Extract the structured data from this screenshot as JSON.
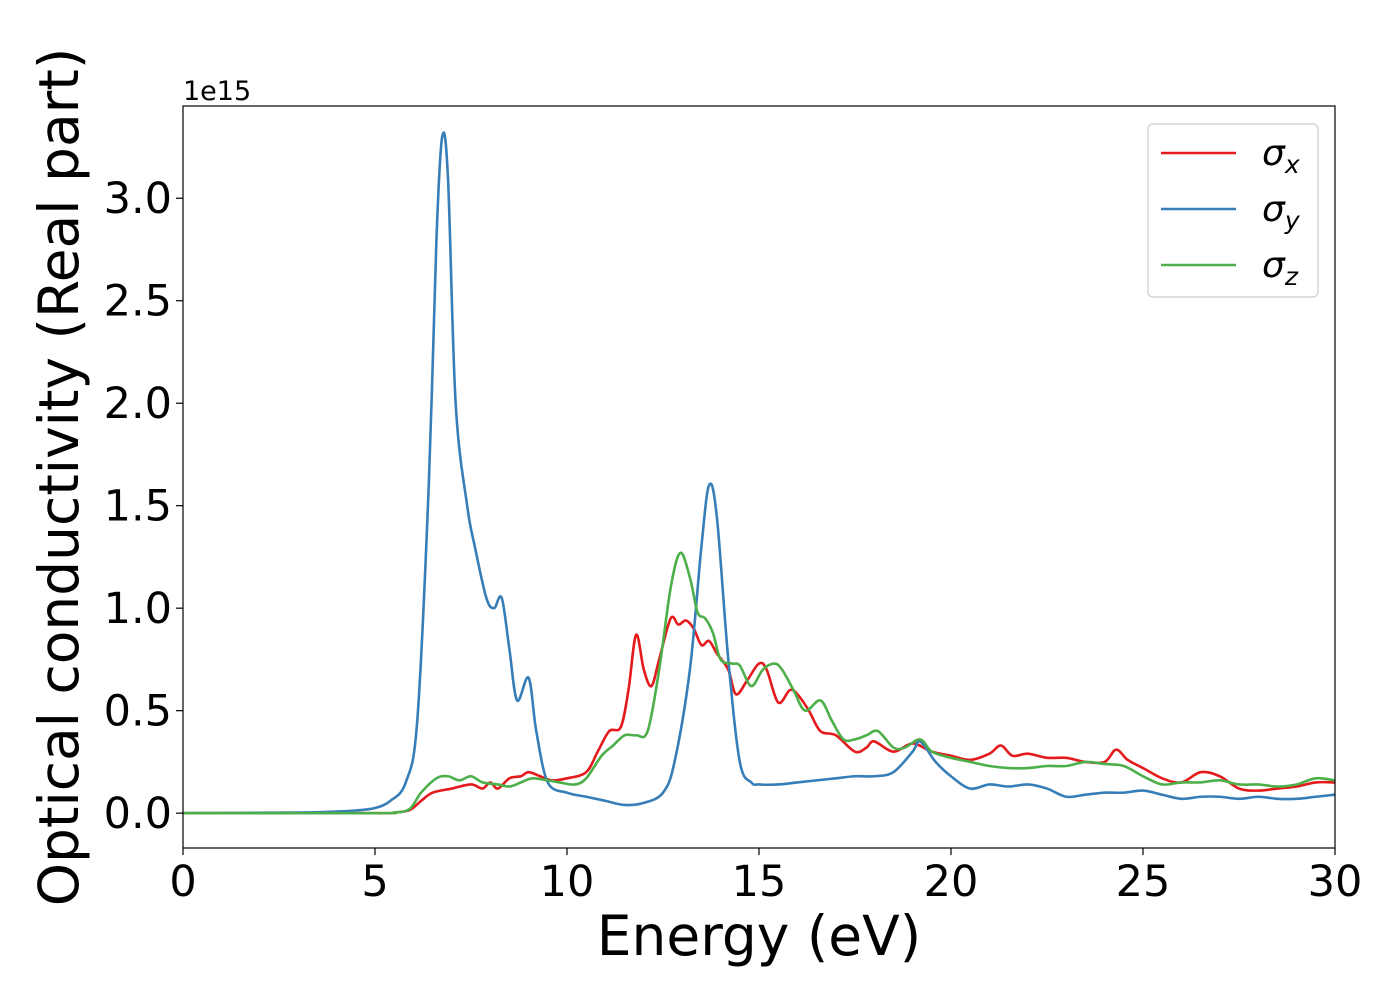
{
  "chart_data": {
    "type": "line",
    "xlabel": "Energy (eV)",
    "ylabel": "Optical conductivity (Real part)",
    "y_offset_text": "1e15",
    "xlim": [
      0,
      30
    ],
    "ylim": [
      -0.17,
      3.45
    ],
    "xticks": [
      0,
      5,
      10,
      15,
      20,
      25,
      30
    ],
    "xtick_labels": [
      "0",
      "5",
      "10",
      "15",
      "20",
      "25",
      "30"
    ],
    "yticks": [
      0.0,
      0.5,
      1.0,
      1.5,
      2.0,
      2.5,
      3.0
    ],
    "ytick_labels": [
      "0.0",
      "0.5",
      "1.0",
      "1.5",
      "2.0",
      "2.5",
      "3.0"
    ],
    "grid": false,
    "legend_position": "top-right",
    "series": [
      {
        "name": "σx",
        "legend_symbol": "σ",
        "legend_sub": "x",
        "color": "#e41a1c",
        "points": [
          [
            0,
            0
          ],
          [
            5,
            0
          ],
          [
            5.5,
            0.003
          ],
          [
            5.9,
            0.015
          ],
          [
            6.2,
            0.06
          ],
          [
            6.5,
            0.1
          ],
          [
            7,
            0.12
          ],
          [
            7.5,
            0.14
          ],
          [
            7.8,
            0.12
          ],
          [
            8,
            0.15
          ],
          [
            8.2,
            0.12
          ],
          [
            8.5,
            0.17
          ],
          [
            8.8,
            0.18
          ],
          [
            9,
            0.2
          ],
          [
            9.3,
            0.18
          ],
          [
            9.6,
            0.16
          ],
          [
            10,
            0.17
          ],
          [
            10.5,
            0.2
          ],
          [
            10.8,
            0.3
          ],
          [
            11.1,
            0.4
          ],
          [
            11.4,
            0.42
          ],
          [
            11.6,
            0.6
          ],
          [
            11.8,
            0.87
          ],
          [
            12,
            0.7
          ],
          [
            12.2,
            0.62
          ],
          [
            12.4,
            0.75
          ],
          [
            12.7,
            0.95
          ],
          [
            12.9,
            0.92
          ],
          [
            13.1,
            0.94
          ],
          [
            13.3,
            0.9
          ],
          [
            13.5,
            0.82
          ],
          [
            13.7,
            0.84
          ],
          [
            13.9,
            0.78
          ],
          [
            14.2,
            0.7
          ],
          [
            14.4,
            0.58
          ],
          [
            14.7,
            0.65
          ],
          [
            15,
            0.73
          ],
          [
            15.2,
            0.7
          ],
          [
            15.5,
            0.54
          ],
          [
            15.8,
            0.6
          ],
          [
            16,
            0.58
          ],
          [
            16.3,
            0.5
          ],
          [
            16.6,
            0.4
          ],
          [
            17,
            0.38
          ],
          [
            17.5,
            0.3
          ],
          [
            17.8,
            0.32
          ],
          [
            18,
            0.35
          ],
          [
            18.5,
            0.3
          ],
          [
            19,
            0.34
          ],
          [
            19.5,
            0.3
          ],
          [
            20,
            0.28
          ],
          [
            20.5,
            0.26
          ],
          [
            21,
            0.29
          ],
          [
            21.3,
            0.33
          ],
          [
            21.6,
            0.28
          ],
          [
            22,
            0.29
          ],
          [
            22.5,
            0.27
          ],
          [
            23,
            0.27
          ],
          [
            23.5,
            0.25
          ],
          [
            24,
            0.25
          ],
          [
            24.3,
            0.31
          ],
          [
            24.6,
            0.26
          ],
          [
            25,
            0.22
          ],
          [
            25.5,
            0.17
          ],
          [
            26,
            0.15
          ],
          [
            26.5,
            0.2
          ],
          [
            27,
            0.18
          ],
          [
            27.5,
            0.12
          ],
          [
            28,
            0.11
          ],
          [
            28.5,
            0.12
          ],
          [
            29,
            0.13
          ],
          [
            29.5,
            0.15
          ],
          [
            30,
            0.15
          ]
        ]
      },
      {
        "name": "σy",
        "legend_symbol": "σ",
        "legend_sub": "y",
        "color": "#377eb8",
        "points": [
          [
            0,
            0
          ],
          [
            3,
            0.003
          ],
          [
            4,
            0.008
          ],
          [
            4.5,
            0.013
          ],
          [
            5,
            0.025
          ],
          [
            5.4,
            0.06
          ],
          [
            5.8,
            0.15
          ],
          [
            6.1,
            0.45
          ],
          [
            6.4,
            1.6
          ],
          [
            6.6,
            2.8
          ],
          [
            6.75,
            3.3
          ],
          [
            6.9,
            3.1
          ],
          [
            7.1,
            2.0
          ],
          [
            7.4,
            1.5
          ],
          [
            7.6,
            1.3
          ],
          [
            7.9,
            1.05
          ],
          [
            8.1,
            1.0
          ],
          [
            8.3,
            1.05
          ],
          [
            8.5,
            0.8
          ],
          [
            8.7,
            0.55
          ],
          [
            9,
            0.66
          ],
          [
            9.2,
            0.4
          ],
          [
            9.5,
            0.15
          ],
          [
            10,
            0.1
          ],
          [
            10.5,
            0.08
          ],
          [
            11,
            0.06
          ],
          [
            11.5,
            0.04
          ],
          [
            12,
            0.05
          ],
          [
            12.5,
            0.1
          ],
          [
            12.8,
            0.25
          ],
          [
            13.2,
            0.7
          ],
          [
            13.5,
            1.3
          ],
          [
            13.7,
            1.6
          ],
          [
            13.9,
            1.45
          ],
          [
            14.2,
            0.75
          ],
          [
            14.5,
            0.25
          ],
          [
            14.8,
            0.15
          ],
          [
            15,
            0.14
          ],
          [
            15.5,
            0.14
          ],
          [
            16,
            0.15
          ],
          [
            16.5,
            0.16
          ],
          [
            17,
            0.17
          ],
          [
            17.5,
            0.18
          ],
          [
            18,
            0.18
          ],
          [
            18.5,
            0.2
          ],
          [
            19,
            0.3
          ],
          [
            19.2,
            0.35
          ],
          [
            19.6,
            0.25
          ],
          [
            20,
            0.18
          ],
          [
            20.5,
            0.12
          ],
          [
            21,
            0.14
          ],
          [
            21.5,
            0.13
          ],
          [
            22,
            0.14
          ],
          [
            22.5,
            0.12
          ],
          [
            23,
            0.08
          ],
          [
            23.5,
            0.09
          ],
          [
            24,
            0.1
          ],
          [
            24.5,
            0.1
          ],
          [
            25,
            0.11
          ],
          [
            25.5,
            0.09
          ],
          [
            26,
            0.07
          ],
          [
            26.5,
            0.08
          ],
          [
            27,
            0.08
          ],
          [
            27.5,
            0.07
          ],
          [
            28,
            0.08
          ],
          [
            28.5,
            0.07
          ],
          [
            29,
            0.07
          ],
          [
            29.5,
            0.08
          ],
          [
            30,
            0.09
          ]
        ]
      },
      {
        "name": "σz",
        "legend_symbol": "σ",
        "legend_sub": "z",
        "color": "#4daf4a",
        "points": [
          [
            0,
            0
          ],
          [
            5,
            0
          ],
          [
            5.5,
            0.003
          ],
          [
            5.9,
            0.02
          ],
          [
            6.2,
            0.1
          ],
          [
            6.6,
            0.17
          ],
          [
            6.9,
            0.18
          ],
          [
            7.2,
            0.16
          ],
          [
            7.5,
            0.18
          ],
          [
            7.8,
            0.15
          ],
          [
            8.2,
            0.14
          ],
          [
            8.5,
            0.13
          ],
          [
            8.8,
            0.15
          ],
          [
            9.1,
            0.17
          ],
          [
            9.5,
            0.16
          ],
          [
            9.8,
            0.15
          ],
          [
            10.2,
            0.14
          ],
          [
            10.5,
            0.17
          ],
          [
            10.9,
            0.28
          ],
          [
            11.2,
            0.33
          ],
          [
            11.5,
            0.38
          ],
          [
            11.8,
            0.38
          ],
          [
            12.1,
            0.4
          ],
          [
            12.4,
            0.7
          ],
          [
            12.7,
            1.1
          ],
          [
            12.95,
            1.27
          ],
          [
            13.2,
            1.15
          ],
          [
            13.4,
            0.98
          ],
          [
            13.6,
            0.95
          ],
          [
            13.8,
            0.88
          ],
          [
            14,
            0.75
          ],
          [
            14.3,
            0.73
          ],
          [
            14.5,
            0.72
          ],
          [
            14.8,
            0.62
          ],
          [
            15.1,
            0.7
          ],
          [
            15.4,
            0.73
          ],
          [
            15.6,
            0.7
          ],
          [
            15.9,
            0.6
          ],
          [
            16.2,
            0.5
          ],
          [
            16.6,
            0.55
          ],
          [
            16.9,
            0.45
          ],
          [
            17.2,
            0.36
          ],
          [
            17.5,
            0.36
          ],
          [
            17.8,
            0.38
          ],
          [
            18.1,
            0.4
          ],
          [
            18.5,
            0.32
          ],
          [
            18.8,
            0.32
          ],
          [
            19.2,
            0.36
          ],
          [
            19.5,
            0.3
          ],
          [
            20,
            0.27
          ],
          [
            20.5,
            0.25
          ],
          [
            21,
            0.23
          ],
          [
            21.5,
            0.22
          ],
          [
            22,
            0.22
          ],
          [
            22.5,
            0.23
          ],
          [
            23,
            0.23
          ],
          [
            23.5,
            0.25
          ],
          [
            24,
            0.24
          ],
          [
            24.5,
            0.23
          ],
          [
            25,
            0.18
          ],
          [
            25.5,
            0.14
          ],
          [
            26,
            0.15
          ],
          [
            26.5,
            0.15
          ],
          [
            27,
            0.16
          ],
          [
            27.5,
            0.14
          ],
          [
            28,
            0.14
          ],
          [
            28.5,
            0.13
          ],
          [
            29,
            0.14
          ],
          [
            29.5,
            0.17
          ],
          [
            30,
            0.16
          ]
        ]
      }
    ]
  }
}
